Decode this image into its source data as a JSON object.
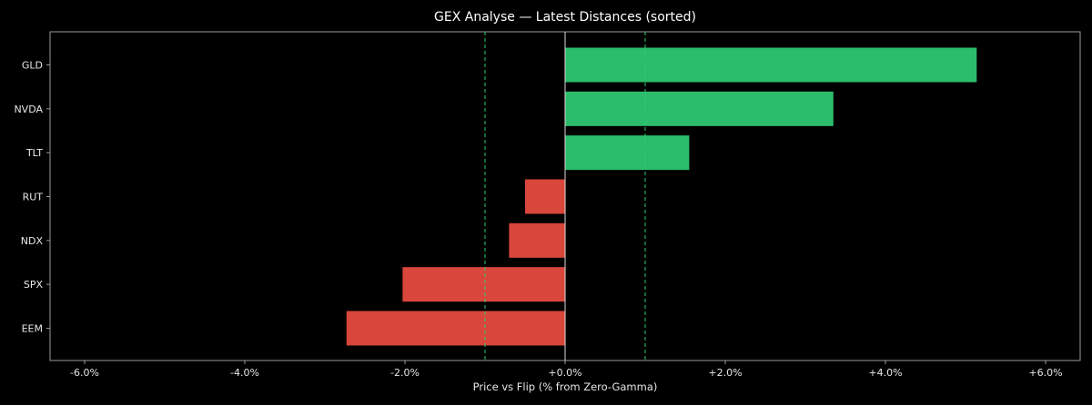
{
  "chart_data": {
    "type": "bar",
    "orientation": "horizontal",
    "title": "GEX Analyse — Latest Distances (sorted)",
    "xlabel": "Price vs Flip (% from Zero-Gamma)",
    "ylabel": "",
    "xlim": [
      -6.0,
      6.0
    ],
    "xticks": [
      -6,
      -4,
      -2,
      0,
      2,
      4,
      6
    ],
    "xtick_labels": [
      "-6.0%",
      "-4.0%",
      "-2.0%",
      "+0.0%",
      "+2.0%",
      "+4.0%",
      "+6.0%"
    ],
    "categories": [
      "GLD",
      "NVDA",
      "TLT",
      "RUT",
      "NDX",
      "SPX",
      "EEM"
    ],
    "values": [
      5.14,
      3.35,
      1.55,
      -0.5,
      -0.7,
      -2.03,
      -2.73
    ],
    "reference_lines": [
      {
        "x": -1.0,
        "style": "dashed",
        "color": "#2ecc71"
      },
      {
        "x": 1.0,
        "style": "dashed",
        "color": "#2ecc71"
      },
      {
        "x": 0.0,
        "style": "solid",
        "color": "#ffffff"
      }
    ],
    "colors": {
      "positive": "#2bbd6b",
      "negative": "#d9463b",
      "background": "#000000",
      "frame": "#9a9a9a",
      "text": "#e6e6e6"
    },
    "grid": false,
    "legend": "none"
  }
}
